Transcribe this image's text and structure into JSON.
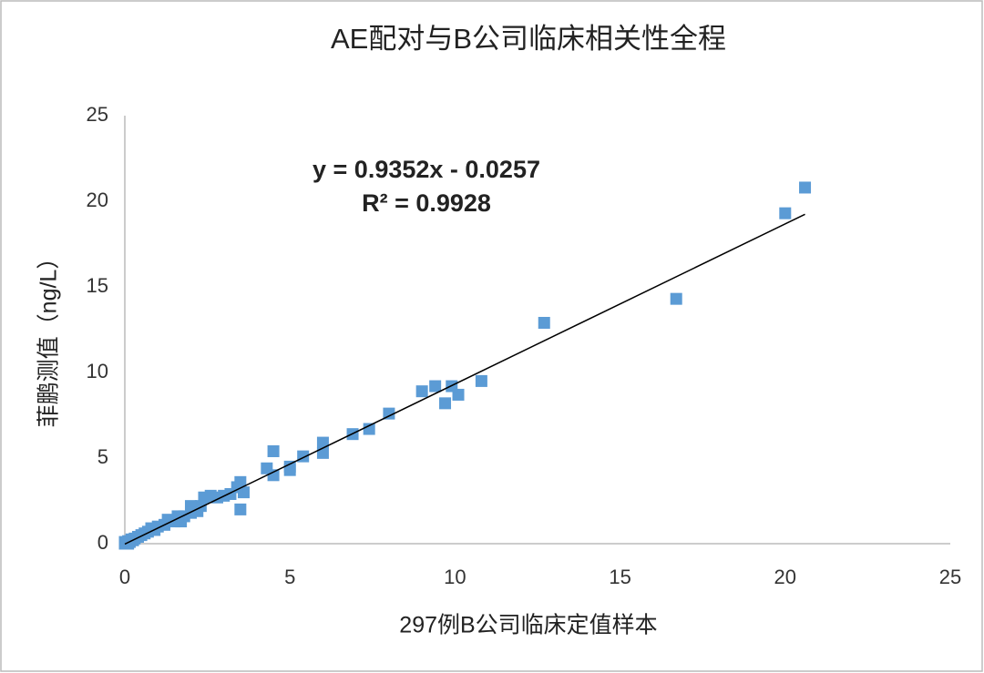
{
  "chart_data": {
    "type": "scatter",
    "title": "AE配对与B公司临床相关性全程",
    "x_label": "297例B公司临床定值样本",
    "y_label": "菲鹏测值（ng/L）",
    "color": "#5b9bd5",
    "xlim": [
      0,
      25
    ],
    "ylim": [
      0,
      25
    ],
    "xticks": [
      0,
      5,
      10,
      15,
      20,
      25
    ],
    "yticks": [
      0,
      5,
      10,
      15,
      20,
      25
    ],
    "grid": false,
    "x": [
      20.6,
      20.0,
      16.7,
      12.7,
      10.8,
      10.1,
      9.9,
      9.7,
      9.4,
      9.0,
      8.0,
      7.4,
      6.9,
      6.0,
      6.0,
      5.4,
      5.0,
      5.0,
      4.5,
      4.5,
      4.3,
      3.6,
      3.5,
      3.5,
      3.4,
      3.2,
      3.0,
      2.8,
      2.6,
      2.4,
      2.3,
      2.2,
      2.0,
      2.0,
      1.8,
      1.7,
      1.6,
      1.5,
      1.3,
      1.2,
      1.0,
      0.9,
      0.8,
      0.7,
      0.6,
      0.5,
      0.4,
      0.3,
      0.25,
      0.2,
      0.15,
      0.1,
      0.05,
      0,
      0.1,
      0
    ],
    "values": [
      20.8,
      19.3,
      14.3,
      12.9,
      9.5,
      8.7,
      9.2,
      8.2,
      9.2,
      8.9,
      7.6,
      6.7,
      6.4,
      5.9,
      5.3,
      5.1,
      4.5,
      4.3,
      5.4,
      4.0,
      4.4,
      3.0,
      3.6,
      2.0,
      3.3,
      2.9,
      2.8,
      2.7,
      2.8,
      2.7,
      2.2,
      1.9,
      2.2,
      1.8,
      1.6,
      1.3,
      1.6,
      1.3,
      1.4,
      1.1,
      1.0,
      0.8,
      0.9,
      0.7,
      0.6,
      0.5,
      0.4,
      0.3,
      0.2,
      0.25,
      0.1,
      0.15,
      0.05,
      0,
      0,
      0.1
    ],
    "trendline": {
      "equation": "y = 0.9352x - 0.0257",
      "r2": "R² = 0.9928",
      "slope": 0.9352,
      "intercept": -0.0257
    }
  }
}
